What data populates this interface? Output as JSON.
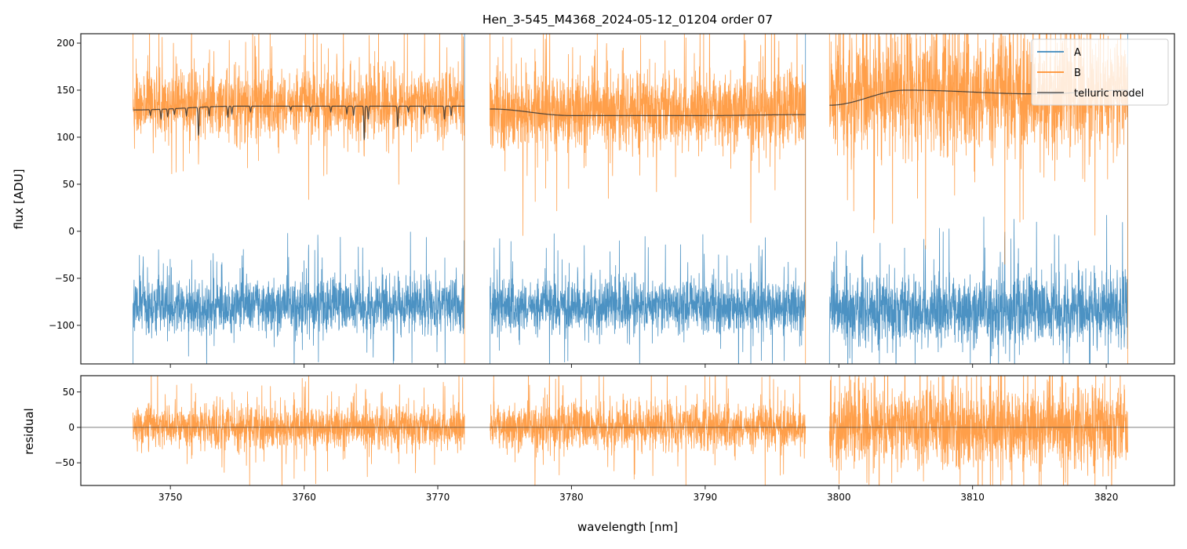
{
  "chart_data": [
    {
      "type": "line",
      "panel": "main",
      "title": "Hen_3-545_M4368_2024-05-12_01204  order 07",
      "xlabel": "",
      "ylabel": "flux [ADU]",
      "xlim": [
        3743.3,
        3825.1
      ],
      "ylim": [
        -141,
        210
      ],
      "yticks": [
        -100,
        -50,
        0,
        50,
        100,
        150,
        200
      ],
      "xticks": [
        3750,
        3760,
        3770,
        3780,
        3790,
        3800,
        3810,
        3820
      ],
      "legend": {
        "placement": "top-right",
        "entries": [
          "A",
          "B",
          "telluric model"
        ]
      },
      "segments": [
        [
          3747.2,
          3772.0
        ],
        [
          3773.9,
          3797.5
        ],
        [
          3799.3,
          3821.6
        ]
      ],
      "series": [
        {
          "name": "A",
          "color": "#1f77b4",
          "mean": [
            -80,
            -80,
            -85
          ],
          "std": [
            14,
            14,
            18
          ]
        },
        {
          "name": "B",
          "color": "#ff7f0e",
          "mean": [
            135,
            128,
            145
          ],
          "std": [
            18,
            20,
            32
          ]
        },
        {
          "name": "telluric model",
          "color": "#333333",
          "continuum_x": [
            3747.2,
            3755,
            3772.0,
            3773.9,
            3780,
            3790,
            3797.5,
            3799.3,
            3805,
            3815,
            3821.6
          ],
          "continuum_y": [
            129,
            133,
            133,
            130,
            123,
            123,
            124,
            134,
            150,
            146,
            150
          ],
          "absorption_lines": [
            [
              3748.5,
              6
            ],
            [
              3749.3,
              10
            ],
            [
              3749.8,
              8
            ],
            [
              3750.3,
              6
            ],
            [
              3751.2,
              8
            ],
            [
              3752.1,
              30
            ],
            [
              3752.9,
              10
            ],
            [
              3754.3,
              12
            ],
            [
              3754.6,
              8
            ],
            [
              3756.0,
              6
            ],
            [
              3759.0,
              4
            ],
            [
              3760.5,
              6
            ],
            [
              3762.0,
              6
            ],
            [
              3763.2,
              8
            ],
            [
              3763.7,
              10
            ],
            [
              3764.5,
              36
            ],
            [
              3764.8,
              14
            ],
            [
              3767.0,
              22
            ],
            [
              3767.8,
              6
            ],
            [
              3769.0,
              8
            ],
            [
              3770.5,
              14
            ],
            [
              3771.0,
              10
            ]
          ]
        }
      ]
    },
    {
      "type": "line",
      "panel": "residual",
      "xlabel": "wavelength [nm]",
      "ylabel": "residual",
      "xlim": [
        3743.3,
        3825.1
      ],
      "ylim": [
        -82,
        73
      ],
      "yticks": [
        -50,
        0,
        50
      ],
      "xticks": [
        3750,
        3760,
        3770,
        3780,
        3790,
        3800,
        3810,
        3820
      ],
      "segments": [
        [
          3747.2,
          3772.0
        ],
        [
          3773.9,
          3797.5
        ],
        [
          3799.3,
          3821.6
        ]
      ],
      "series": [
        {
          "name": "B residual",
          "color": "#ff7f0e",
          "mean": [
            0,
            0,
            0
          ],
          "std": [
            15,
            16,
            28
          ]
        }
      ],
      "zero_line": 0
    }
  ]
}
